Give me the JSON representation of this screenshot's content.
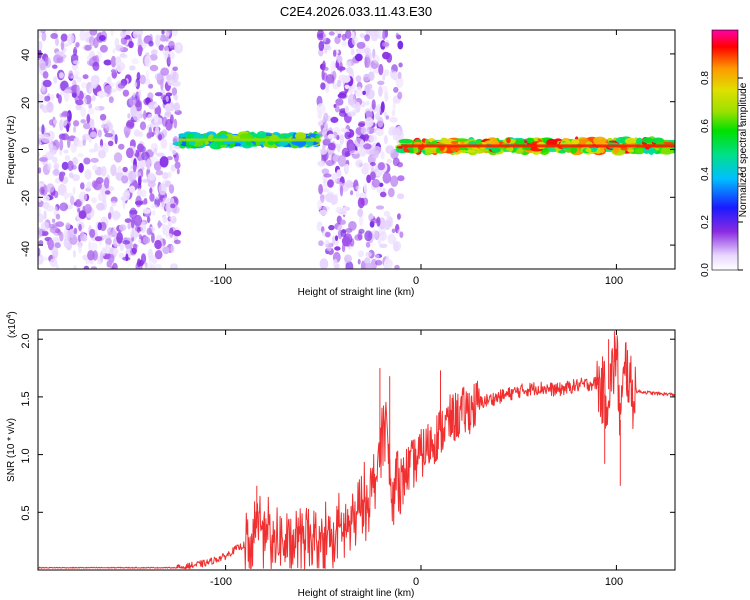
{
  "figure_title": "C2E4.2026.033.11.43.E30",
  "colors": {
    "line": "#f03030",
    "frame": "#000000",
    "background": "#ffffff",
    "colormap": [
      "#ffffff",
      "#e9d8ff",
      "#8a2be2",
      "#1a1aff",
      "#00bfff",
      "#00e08a",
      "#00e000",
      "#9be000",
      "#e0e000",
      "#ff9900",
      "#ff0000",
      "#ff00aa"
    ]
  },
  "chart_data": [
    {
      "type": "heatmap",
      "title": "C2E4.2026.033.11.43.E30",
      "xlabel": "Height of straight line (km)",
      "ylabel": "Frequency (Hz)",
      "xlim": [
        -196,
        130
      ],
      "ylim": [
        -50,
        50
      ],
      "xticks": [
        -100,
        0,
        100
      ],
      "xtick_labels": [
        "-100",
        "0",
        "100"
      ],
      "yticks": [
        -40,
        -20,
        0,
        20,
        40
      ],
      "ytick_labels": [
        "-40",
        "-20",
        "0",
        "20",
        "40"
      ],
      "colorbar": {
        "label": "Normalized spectral amplitude",
        "range": [
          0,
          1
        ],
        "ticks": [
          0,
          0.2,
          0.4,
          0.6,
          0.8
        ],
        "tick_labels": [
          "0.0",
          "0.2",
          "0.4",
          "0.6",
          "0.8"
        ]
      },
      "regions": [
        {
          "name": "noise",
          "x_start": -196,
          "x_end": -124,
          "intensity": 0.15
        },
        {
          "name": "signal-band",
          "x_start": -124,
          "x_end": -52,
          "center_hz": 4,
          "intensity": 0.6
        },
        {
          "name": "noise",
          "x_start": -52,
          "x_end": -10,
          "intensity": 0.15
        },
        {
          "name": "signal-band",
          "x_start": -10,
          "x_end": 130,
          "center_hz": 1.5,
          "intensity": 0.85
        }
      ]
    },
    {
      "type": "line",
      "xlabel": "Height of straight line (km)",
      "ylabel": "SNR (10 * v/v)",
      "y_multiplier_label": "(x10",
      "y_multiplier_exp": "4",
      "y_multiplier_close": ")",
      "xlim": [
        -196,
        130
      ],
      "ylim": [
        0,
        2.08
      ],
      "xticks": [
        -100,
        0,
        100
      ],
      "xtick_labels": [
        "-100",
        "0",
        "100"
      ],
      "yticks": [
        0.5,
        1.0,
        1.5,
        2.0
      ],
      "ytick_labels": [
        "0.5",
        "1.0",
        "1.5",
        "2.0"
      ],
      "series": [
        {
          "name": "SNR",
          "color": "#f03030",
          "x": [
            -196,
            -170,
            -140,
            -125,
            -120,
            -110,
            -100,
            -95,
            -90,
            -86,
            -84,
            -80,
            -75,
            -70,
            -60,
            -50,
            -45,
            -40,
            -35,
            -30,
            -25,
            -22,
            -20,
            -18,
            -15,
            -12,
            -10,
            -8,
            -5,
            0,
            5,
            10,
            15,
            20,
            25,
            30,
            40,
            50,
            60,
            70,
            80,
            90,
            95,
            98,
            100,
            102,
            105,
            108,
            110,
            115,
            120,
            130
          ],
          "y": [
            0.02,
            0.02,
            0.02,
            0.02,
            0.03,
            0.06,
            0.12,
            0.18,
            0.22,
            0.3,
            0.5,
            0.3,
            0.25,
            0.22,
            0.25,
            0.28,
            0.3,
            0.35,
            0.4,
            0.55,
            0.7,
            0.9,
            1.2,
            1.3,
            0.6,
            0.9,
            0.7,
            0.85,
            0.9,
            1.0,
            1.1,
            1.2,
            1.3,
            1.35,
            1.4,
            1.45,
            1.5,
            1.55,
            1.58,
            1.56,
            1.6,
            1.62,
            1.5,
            1.7,
            1.9,
            1.3,
            1.8,
            1.5,
            1.55,
            1.54,
            1.53,
            1.52
          ]
        }
      ],
      "spikes": [
        {
          "x": -84,
          "y": 0.73
        },
        {
          "x": -21,
          "y": 1.75
        },
        {
          "x": -16,
          "y": 1.68
        },
        {
          "x": 10,
          "y": 1.73
        },
        {
          "x": 12,
          "y": 1.13
        },
        {
          "x": 94,
          "y": 0.92
        },
        {
          "x": 96,
          "y": 2.0
        },
        {
          "x": 99,
          "y": 2.07
        },
        {
          "x": 102,
          "y": 0.73
        }
      ]
    }
  ]
}
